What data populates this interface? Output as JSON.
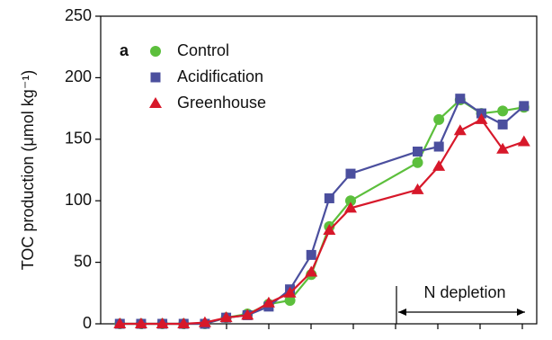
{
  "chart_data": {
    "type": "line",
    "panel_label": "a",
    "y_label": "TOC production (μmol kg⁻¹)",
    "annotation": "N depletion",
    "x": [
      0,
      1,
      2,
      3,
      4,
      5,
      6,
      7,
      8,
      9,
      9.85,
      10.85,
      14,
      15,
      16,
      17,
      18,
      19
    ],
    "xlim": [
      -0.9,
      19.6
    ],
    "ylim": [
      0,
      250
    ],
    "yticks": [
      0,
      50,
      100,
      150,
      200,
      250
    ],
    "series": [
      {
        "name": "Control",
        "color": "#5cbf3c",
        "marker": "circle",
        "values": [
          0,
          0,
          0,
          0,
          0,
          5,
          8,
          16,
          19,
          40,
          79,
          100,
          131,
          166,
          182,
          171,
          173,
          176
        ]
      },
      {
        "name": "Acidification",
        "color": "#4b4f9e",
        "marker": "square",
        "values": [
          0,
          0,
          0,
          0,
          0,
          5,
          7,
          14,
          28,
          56,
          102,
          122,
          140,
          144,
          183,
          171,
          162,
          177
        ]
      },
      {
        "name": "Greenhouse",
        "color": "#d7182a",
        "marker": "triangle",
        "values": [
          0,
          0,
          0,
          0,
          1,
          5,
          7,
          17,
          25,
          42,
          76,
          94,
          109,
          128,
          157,
          166,
          142,
          148
        ]
      }
    ]
  }
}
